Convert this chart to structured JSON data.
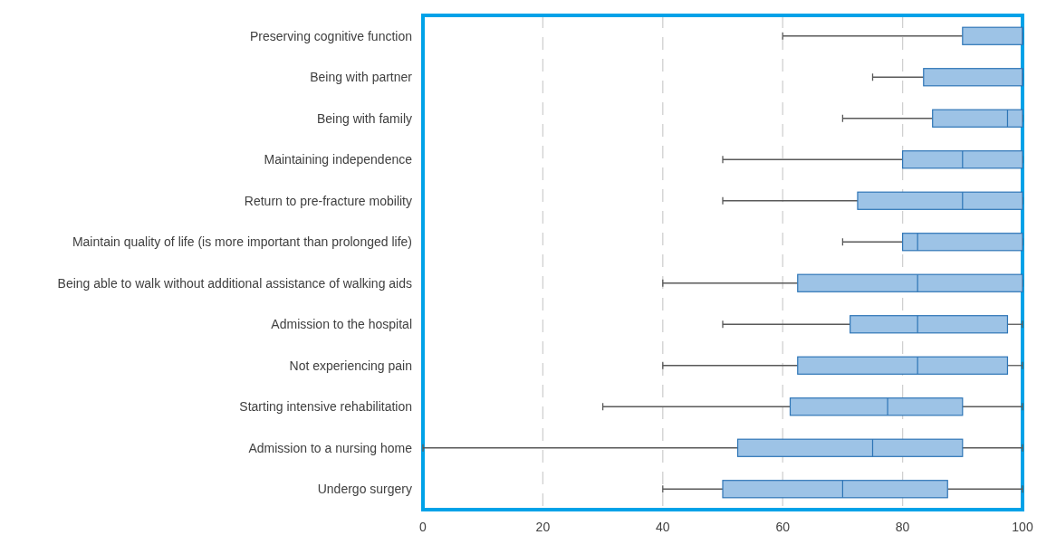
{
  "chart_data": {
    "type": "box",
    "orientation": "horizontal",
    "color": "#9dc3e6",
    "grid": "x",
    "xlim": [
      0,
      100
    ],
    "xticks": [
      0,
      20,
      40,
      60,
      80,
      100
    ],
    "categories": [
      "Preserving cognitive function",
      "Being with partner",
      "Being with family",
      "Maintaining independence",
      "Return to pre-fracture mobility",
      "Maintain quality of life (is more important than prolonged life)",
      "Being able to walk without additional assistance of walking aids",
      "Admission to the hospital",
      "Not experiencing pain",
      "Starting intensive rehabilitation",
      "Admission to a nursing home",
      "Undergo surgery"
    ],
    "boxes": [
      {
        "low": 60,
        "q1": 90,
        "median": 100,
        "q3": 100,
        "high": 100
      },
      {
        "low": 75,
        "q1": 83.5,
        "median": 100,
        "q3": 100,
        "high": 100
      },
      {
        "low": 70,
        "q1": 85,
        "median": 97.5,
        "q3": 100,
        "high": 100
      },
      {
        "low": 50,
        "q1": 80,
        "median": 90,
        "q3": 100,
        "high": 100
      },
      {
        "low": 50,
        "q1": 72.5,
        "median": 90,
        "q3": 100,
        "high": 100
      },
      {
        "low": 70,
        "q1": 80,
        "median": 82.5,
        "q3": 100,
        "high": 100
      },
      {
        "low": 40,
        "q1": 62.5,
        "median": 82.5,
        "q3": 100,
        "high": 100
      },
      {
        "low": 50,
        "q1": 71.25,
        "median": 82.5,
        "q3": 97.5,
        "high": 100
      },
      {
        "low": 40,
        "q1": 62.5,
        "median": 82.5,
        "q3": 97.5,
        "high": 100
      },
      {
        "low": 30,
        "q1": 61.25,
        "median": 77.5,
        "q3": 90,
        "high": 100
      },
      {
        "low": 0,
        "q1": 52.5,
        "median": 75,
        "q3": 90,
        "high": 100
      },
      {
        "low": 40,
        "q1": 50,
        "median": 70,
        "q3": 87.5,
        "high": 100
      }
    ]
  }
}
